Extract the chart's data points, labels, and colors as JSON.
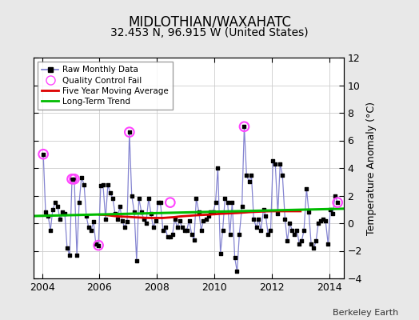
{
  "title": "MIDLOTHIAN/WAXAHATC",
  "subtitle": "32.453 N, 96.915 W (United States)",
  "ylabel": "Temperature Anomaly (°C)",
  "footer": "Berkeley Earth",
  "background_color": "#e8e8e8",
  "plot_bg_color": "#ffffff",
  "ylim": [
    -4,
    12
  ],
  "yticks": [
    -4,
    -2,
    0,
    2,
    4,
    6,
    8,
    10,
    12
  ],
  "xlim": [
    2003.7,
    2014.5
  ],
  "xticks": [
    2004,
    2006,
    2008,
    2010,
    2012,
    2014
  ],
  "raw_x": [
    2004.04,
    2004.12,
    2004.21,
    2004.29,
    2004.37,
    2004.46,
    2004.54,
    2004.62,
    2004.71,
    2004.79,
    2004.87,
    2004.96,
    2005.04,
    2005.12,
    2005.21,
    2005.29,
    2005.37,
    2005.46,
    2005.54,
    2005.62,
    2005.71,
    2005.79,
    2005.87,
    2005.96,
    2006.04,
    2006.12,
    2006.21,
    2006.29,
    2006.37,
    2006.46,
    2006.54,
    2006.62,
    2006.71,
    2006.79,
    2006.87,
    2006.96,
    2007.04,
    2007.12,
    2007.21,
    2007.29,
    2007.37,
    2007.46,
    2007.54,
    2007.62,
    2007.71,
    2007.79,
    2007.87,
    2007.96,
    2008.04,
    2008.12,
    2008.21,
    2008.29,
    2008.37,
    2008.46,
    2008.54,
    2008.62,
    2008.71,
    2008.79,
    2008.87,
    2008.96,
    2009.04,
    2009.12,
    2009.21,
    2009.29,
    2009.37,
    2009.46,
    2009.54,
    2009.62,
    2009.71,
    2009.79,
    2009.87,
    2009.96,
    2010.04,
    2010.12,
    2010.21,
    2010.29,
    2010.37,
    2010.46,
    2010.54,
    2010.62,
    2010.71,
    2010.79,
    2010.87,
    2010.96,
    2011.04,
    2011.12,
    2011.21,
    2011.29,
    2011.37,
    2011.46,
    2011.54,
    2011.62,
    2011.71,
    2011.79,
    2011.87,
    2011.96,
    2012.04,
    2012.12,
    2012.21,
    2012.29,
    2012.37,
    2012.46,
    2012.54,
    2012.62,
    2012.71,
    2012.79,
    2012.87,
    2012.96,
    2013.04,
    2013.12,
    2013.21,
    2013.29,
    2013.37,
    2013.46,
    2013.54,
    2013.62,
    2013.71,
    2013.79,
    2013.87,
    2013.96,
    2014.04,
    2014.12,
    2014.21,
    2014.29
  ],
  "raw_y": [
    5.0,
    0.8,
    0.5,
    -0.5,
    1.0,
    1.5,
    1.2,
    0.3,
    0.8,
    0.7,
    -1.8,
    -2.3,
    3.2,
    3.2,
    -2.3,
    1.5,
    3.3,
    2.8,
    0.5,
    -0.3,
    -0.5,
    0.1,
    -1.5,
    -1.6,
    2.7,
    2.8,
    0.3,
    2.8,
    2.2,
    1.8,
    0.7,
    0.3,
    1.2,
    0.2,
    -0.3,
    0.1,
    6.6,
    2.0,
    0.8,
    -2.7,
    1.8,
    0.8,
    0.3,
    0.0,
    1.8,
    0.7,
    -0.3,
    0.2,
    1.5,
    1.5,
    -0.5,
    -0.3,
    -1.0,
    -1.0,
    -0.8,
    0.3,
    -0.3,
    0.2,
    -0.3,
    -0.5,
    -0.5,
    0.2,
    -0.8,
    -1.2,
    1.8,
    0.8,
    -0.5,
    0.2,
    0.3,
    0.5,
    0.8,
    0.8,
    1.5,
    4.0,
    -2.2,
    -0.5,
    1.8,
    1.5,
    -0.8,
    1.5,
    -2.5,
    -3.5,
    -0.8,
    1.2,
    7.0,
    3.5,
    3.0,
    3.5,
    0.3,
    -0.3,
    0.3,
    -0.5,
    1.0,
    0.5,
    -0.8,
    -0.5,
    4.5,
    4.3,
    0.7,
    4.3,
    3.5,
    0.3,
    -1.3,
    0.0,
    -0.5,
    -0.8,
    -0.5,
    -1.5,
    -1.3,
    -0.5,
    2.5,
    0.8,
    -1.5,
    -1.8,
    -1.3,
    0.0,
    0.2,
    0.3,
    0.2,
    -1.5,
    1.0,
    0.7,
    2.0,
    1.5
  ],
  "qc_fail_x": [
    2004.04,
    2005.04,
    2005.12,
    2005.96,
    2007.04,
    2008.46,
    2011.04,
    2014.29
  ],
  "qc_fail_y": [
    5.0,
    3.2,
    3.2,
    -1.6,
    6.6,
    1.5,
    7.0,
    1.5
  ],
  "moving_avg_x": [
    2006.0,
    2006.2,
    2006.4,
    2006.6,
    2006.8,
    2007.0,
    2007.2,
    2007.4,
    2007.6,
    2007.8,
    2008.0,
    2008.2,
    2008.4,
    2008.6,
    2008.8,
    2009.0,
    2009.2,
    2009.4,
    2009.6,
    2009.8,
    2010.0,
    2010.2,
    2010.4,
    2010.6,
    2010.8,
    2011.0,
    2011.2,
    2011.4,
    2011.6,
    2011.8,
    2012.0,
    2012.2,
    2012.4,
    2012.6,
    2012.8,
    2013.0
  ],
  "moving_avg_y": [
    0.62,
    0.6,
    0.55,
    0.5,
    0.48,
    0.46,
    0.43,
    0.41,
    0.39,
    0.38,
    0.38,
    0.38,
    0.41,
    0.44,
    0.49,
    0.52,
    0.55,
    0.58,
    0.6,
    0.62,
    0.65,
    0.68,
    0.7,
    0.72,
    0.74,
    0.77,
    0.8,
    0.82,
    0.84,
    0.86,
    0.87,
    0.87,
    0.87,
    0.87,
    0.87,
    0.87
  ],
  "trend_x": [
    2003.7,
    2014.5
  ],
  "trend_y": [
    0.52,
    1.05
  ],
  "raw_line_color": "#7777cc",
  "raw_marker_color": "#000000",
  "qc_marker_color": "#ff44ff",
  "moving_avg_color": "#dd0000",
  "trend_color": "#00bb00",
  "grid_color": "#cccccc",
  "title_fontsize": 12,
  "subtitle_fontsize": 10,
  "tick_labelsize": 9,
  "ylabel_fontsize": 9
}
